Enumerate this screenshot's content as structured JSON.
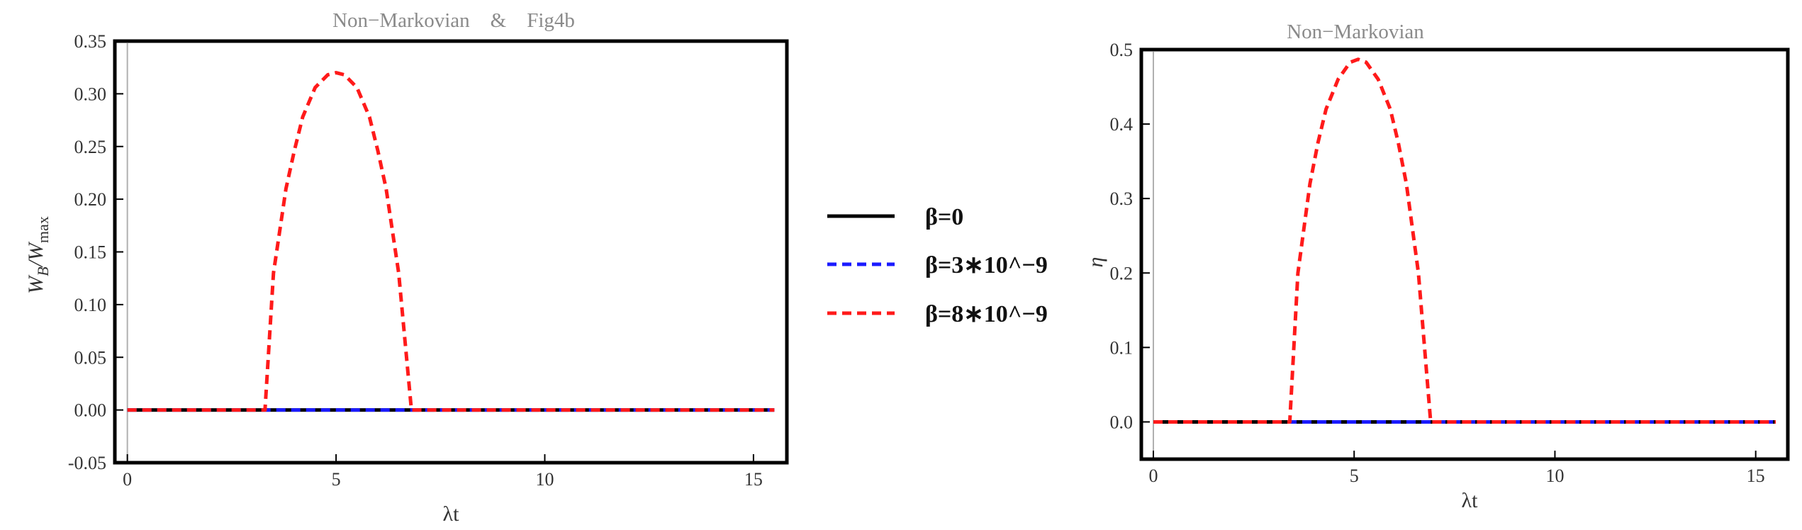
{
  "colors": {
    "black": "#000000",
    "blue": "#1a1aff",
    "red": "#ff1a1a"
  },
  "legend": [
    {
      "label": "β=0",
      "color": "#000000",
      "dash": "solid"
    },
    {
      "label": "β=3∗10^−9",
      "color": "#1a1aff",
      "dash": "dashed"
    },
    {
      "label": "β=8∗10^−9",
      "color": "#ff1a1a",
      "dash": "dashed"
    }
  ],
  "chart_data": [
    {
      "type": "line",
      "title": "Non−Markovian    &    Fig4b",
      "xlabel": "λt",
      "ylabel": "W_B / W_max",
      "xlim": [
        -0.3,
        15.8
      ],
      "ylim": [
        -0.05,
        0.35
      ],
      "xticks": [
        0,
        5,
        10,
        15
      ],
      "yticks": [
        "-0.05",
        "0.00",
        "0.05",
        "0.10",
        "0.15",
        "0.20",
        "0.25",
        "0.30",
        "0.35"
      ],
      "series": [
        {
          "name": "β=0",
          "color": "#000000",
          "dash": "solid",
          "x": [
            0,
            15.5
          ],
          "y": [
            0,
            0
          ]
        },
        {
          "name": "β=3∗10^−9",
          "color": "#1a1aff",
          "dash": "dashed",
          "x": [
            0,
            15.5
          ],
          "y": [
            0,
            0
          ]
        },
        {
          "name": "β=8∗10^−9",
          "color": "#ff1a1a",
          "dash": "dashed",
          "x": [
            0,
            3.3,
            3.3,
            3.5,
            3.8,
            4.0,
            4.2,
            4.5,
            4.8,
            5.0,
            5.2,
            5.5,
            5.8,
            6.0,
            6.2,
            6.5,
            6.8,
            6.8,
            15.5
          ],
          "y": [
            0,
            0,
            0.002,
            0.13,
            0.21,
            0.246,
            0.278,
            0.306,
            0.318,
            0.32,
            0.318,
            0.306,
            0.278,
            0.246,
            0.21,
            0.13,
            0.002,
            0,
            0
          ]
        }
      ]
    },
    {
      "type": "line",
      "title": "Non−Markovian",
      "xlabel": "λt",
      "ylabel": "η",
      "xlim": [
        -0.3,
        15.8
      ],
      "ylim": [
        -0.05,
        0.5
      ],
      "xticks": [
        0,
        5,
        10,
        15
      ],
      "yticks": [
        "0.0",
        "0.1",
        "0.2",
        "0.3",
        "0.4",
        "0.5"
      ],
      "series": [
        {
          "name": "β=0",
          "color": "#000000",
          "dash": "solid",
          "x": [
            0,
            15.5
          ],
          "y": [
            0,
            0
          ]
        },
        {
          "name": "β=3∗10^−9",
          "color": "#1a1aff",
          "dash": "dashed",
          "x": [
            0,
            15.5
          ],
          "y": [
            0,
            0
          ]
        },
        {
          "name": "β=8∗10^−9",
          "color": "#ff1a1a",
          "dash": "dashed",
          "x": [
            0,
            3.4,
            3.4,
            3.6,
            3.9,
            4.1,
            4.3,
            4.6,
            4.9,
            5.1,
            5.3,
            5.6,
            5.9,
            6.1,
            6.3,
            6.6,
            6.9,
            6.9,
            15.5
          ],
          "y": [
            0,
            0,
            0.003,
            0.2,
            0.32,
            0.375,
            0.42,
            0.46,
            0.483,
            0.487,
            0.483,
            0.46,
            0.42,
            0.375,
            0.32,
            0.2,
            0.003,
            0,
            0
          ]
        }
      ]
    }
  ]
}
